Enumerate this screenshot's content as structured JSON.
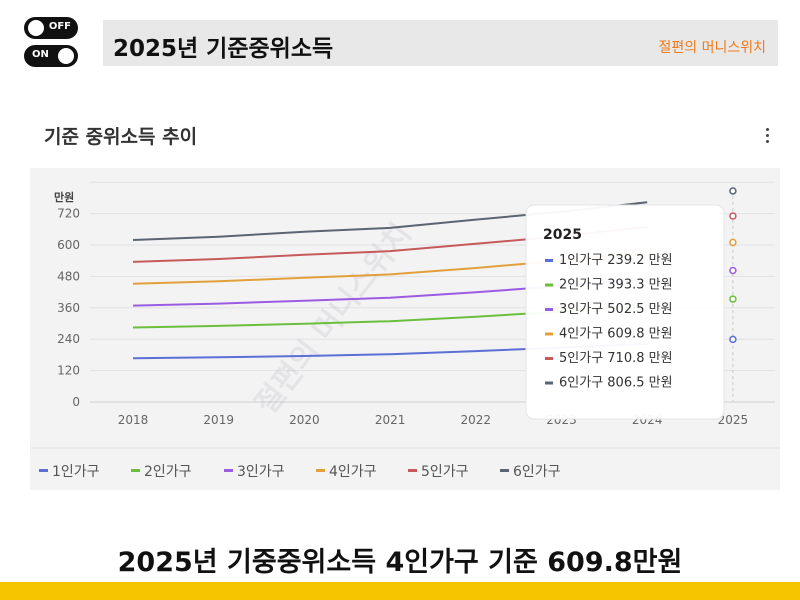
{
  "toggles": {
    "off_label": "OFF",
    "on_label": "ON"
  },
  "header": {
    "title": "2025년 기준중위소득",
    "brand": "절편의 머니스위치"
  },
  "card": {
    "title": "기준 중위소득 추이"
  },
  "caption": "2025년 기중중위소득 4인가구 기준 609.8만원",
  "tooltip": {
    "year": "2025",
    "lines": [
      "1인가구 239.2 만원",
      "2인가구 393.3 만원",
      "3인가구 502.5 만원",
      "4인가구 609.8 만원",
      "5인가구 710.8 만원",
      "6인가구 806.5 만원"
    ]
  },
  "watermark": "절편의 머니스위치",
  "chart_data": {
    "type": "line",
    "ylabel": "만원",
    "categories": [
      "2018",
      "2019",
      "2020",
      "2021",
      "2022",
      "2023",
      "2024",
      "2025"
    ],
    "yticks": [
      0,
      120,
      240,
      360,
      480,
      600,
      720
    ],
    "ylim": [
      0,
      840
    ],
    "grid": true,
    "legend_position": "bottom-left",
    "series": [
      {
        "name": "1인가구",
        "color": "#5b6fd6",
        "values": [
          167.2,
          170.8,
          175.7,
          182.8,
          194.5,
          207.8,
          222.8,
          239.2
        ]
      },
      {
        "name": "2인가구",
        "color": "#6cbf3c",
        "values": [
          284.7,
          290.8,
          299.1,
          308.8,
          326.0,
          345.6,
          368.2,
          393.3
        ]
      },
      {
        "name": "3인가구",
        "color": "#9a5ce0",
        "values": [
          368.3,
          376.2,
          387.0,
          398.5,
          419.4,
          443.5,
          471.3,
          502.5
        ]
      },
      {
        "name": "4인가구",
        "color": "#e3a03a",
        "values": [
          451.9,
          461.4,
          474.9,
          487.6,
          512.2,
          540.1,
          572.9,
          609.8
        ]
      },
      {
        "name": "5인가구",
        "color": "#c65a5a",
        "values": [
          535.5,
          546.6,
          562.7,
          576.6,
          604.7,
          633.7,
          669.2,
          710.8
        ]
      },
      {
        "name": "6인가구",
        "color": "#5a6473",
        "values": [
          619.2,
          631.9,
          650.4,
          665.5,
          696.9,
          726.9,
          763.5,
          806.5
        ]
      }
    ]
  }
}
